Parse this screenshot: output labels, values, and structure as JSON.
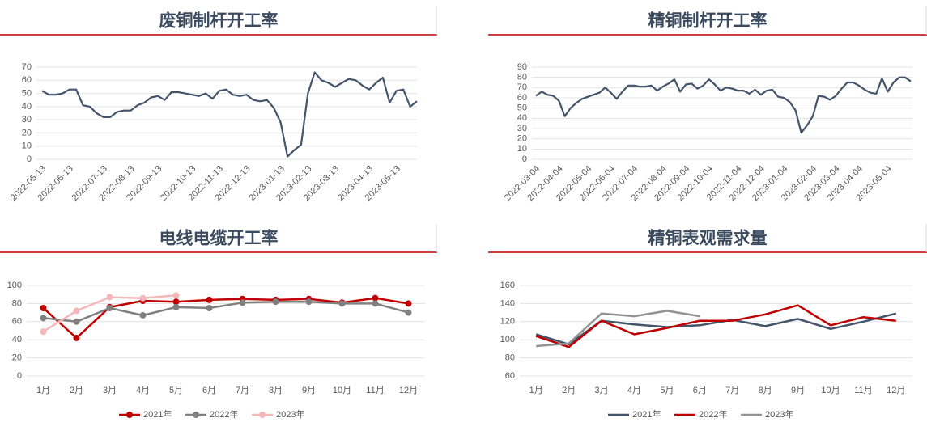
{
  "chart_data": [
    {
      "type": "line",
      "title": "废铜制杆开工率",
      "color": "#44546a",
      "categories": [
        "2022-05-13",
        null,
        null,
        null,
        "2022-06-13",
        null,
        null,
        null,
        null,
        "2022-07-13",
        null,
        null,
        null,
        "2022-08-13",
        null,
        null,
        null,
        "2022-09-13",
        null,
        null,
        null,
        null,
        "2022-10-13",
        null,
        null,
        null,
        "2022-11-13",
        null,
        null,
        null,
        "2022-12-13",
        null,
        null,
        null,
        null,
        "2023-01-13",
        null,
        null,
        null,
        "2023-02-13",
        null,
        null,
        null,
        "2023-03-13",
        null,
        null,
        null,
        null,
        "2023-04-13",
        null,
        null,
        null,
        "2023-05-13",
        null,
        null,
        null
      ],
      "values": [
        52,
        49,
        49,
        50,
        53,
        53,
        41,
        40,
        35,
        32,
        32,
        36,
        37,
        37,
        41,
        43,
        47,
        48,
        45,
        51,
        51,
        50,
        49,
        48,
        50,
        46,
        52,
        53,
        49,
        48,
        49,
        45,
        44,
        45,
        39,
        28,
        2,
        7,
        11,
        50,
        66,
        60,
        58,
        55,
        58,
        61,
        60,
        56,
        53,
        58,
        62,
        43,
        52,
        53,
        40,
        44
      ],
      "ylim": [
        0,
        70
      ],
      "yticks": [
        0,
        10,
        20,
        30,
        40,
        50,
        60,
        70
      ],
      "grid": true
    },
    {
      "type": "line",
      "title": "精铜制杆开工率",
      "color": "#44546a",
      "categories": [
        "2022-03-04",
        null,
        null,
        null,
        "2022-04-04",
        null,
        null,
        null,
        null,
        "2022-05-04",
        null,
        null,
        null,
        "2022-06-04",
        null,
        null,
        null,
        "2022-07-04",
        null,
        null,
        null,
        null,
        "2022-08-04",
        null,
        null,
        null,
        "2022-09-04",
        null,
        null,
        null,
        "2022-10-04",
        null,
        null,
        null,
        null,
        "2022-11-04",
        null,
        null,
        null,
        "2022-12-04",
        null,
        null,
        null,
        "2023-01-04",
        null,
        null,
        null,
        null,
        "2023-02-04",
        null,
        null,
        null,
        "2023-03-04",
        null,
        null,
        null,
        "2023-04-04",
        null,
        null,
        null,
        null,
        "2023-05-04",
        null,
        null,
        null,
        null
      ],
      "values": [
        62,
        66,
        63,
        62,
        57,
        42,
        50,
        55,
        59,
        61,
        63,
        65,
        70,
        65,
        59,
        66,
        72,
        72,
        71,
        71,
        72,
        67,
        71,
        74,
        78,
        66,
        73,
        74,
        69,
        72,
        78,
        73,
        67,
        70,
        69,
        67,
        67,
        64,
        68,
        63,
        67,
        68,
        61,
        60,
        56,
        48,
        26,
        33,
        42,
        62,
        61,
        58,
        62,
        69,
        75,
        75,
        72,
        68,
        65,
        64,
        79,
        66,
        75,
        80,
        80,
        76
      ],
      "ylim": [
        0,
        90
      ],
      "yticks": [
        0,
        10,
        20,
        30,
        40,
        50,
        60,
        70,
        80,
        90
      ],
      "grid": true
    },
    {
      "type": "line",
      "title": "电线电缆开工率",
      "markers": true,
      "legend": "bottom",
      "categories": [
        "1月",
        "2月",
        "3月",
        "4月",
        "5月",
        "6月",
        "7月",
        "8月",
        "9月",
        "10月",
        "11月",
        "12月"
      ],
      "series": [
        {
          "name": "2021年",
          "color": "#c00000",
          "values": [
            75,
            42,
            76,
            83,
            82,
            84,
            85,
            84,
            85,
            81,
            86,
            80
          ]
        },
        {
          "name": "2022年",
          "color": "#808080",
          "values": [
            64,
            60,
            75,
            67,
            76,
            75,
            81,
            82,
            82,
            80,
            80,
            70
          ]
        },
        {
          "name": "2023年",
          "color": "#f4b8ba",
          "values": [
            49,
            72,
            87,
            86,
            89,
            null,
            null,
            null,
            null,
            null,
            null,
            null
          ]
        }
      ],
      "ylim": [
        0,
        100
      ],
      "yticks": [
        0,
        20,
        40,
        60,
        80,
        100
      ],
      "grid": true
    },
    {
      "type": "line",
      "title": "精铜表观需求量",
      "markers": false,
      "legend": "bottom",
      "categories": [
        "1月",
        "2月",
        "3月",
        "4月",
        "5月",
        "6月",
        "7月",
        "8月",
        "9月",
        "10月",
        "11月",
        "12月"
      ],
      "series": [
        {
          "name": "2021年",
          "color": "#44546a",
          "values": [
            106,
            95,
            121,
            117,
            114,
            116,
            122,
            115,
            123,
            112,
            120,
            129
          ]
        },
        {
          "name": "2022年",
          "color": "#c00000",
          "values": [
            104,
            92,
            121,
            106,
            113,
            121,
            121,
            128,
            138,
            116,
            125,
            121
          ]
        },
        {
          "name": "2023年",
          "color": "#939393",
          "values": [
            93,
            96,
            129,
            126,
            132,
            126,
            null,
            null,
            null,
            null,
            null,
            null
          ]
        }
      ],
      "ylim": [
        60,
        160
      ],
      "yticks": [
        60,
        80,
        100,
        120,
        140,
        160
      ],
      "grid": true
    }
  ]
}
